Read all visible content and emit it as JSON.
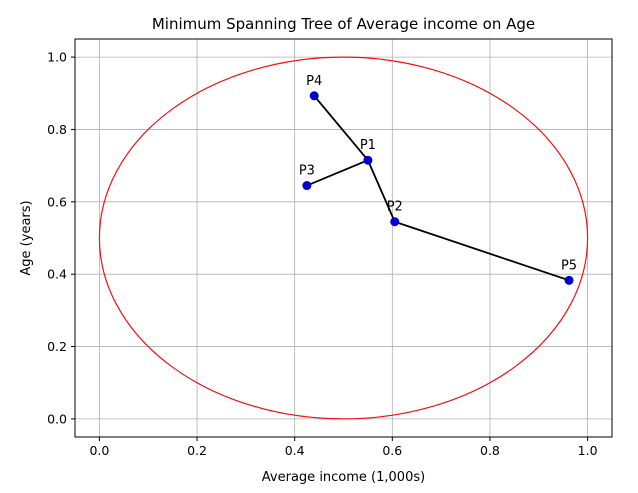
{
  "chart_data": {
    "type": "scatter",
    "title": "Minimum Spanning Tree of Average income on Age",
    "xlabel": "Average income (1,000s)",
    "ylabel": "Age (years)",
    "xlim": [
      -0.05,
      1.05
    ],
    "ylim": [
      -0.05,
      1.05
    ],
    "xticks": [
      0.0,
      0.2,
      0.4,
      0.6,
      0.8,
      1.0
    ],
    "yticks": [
      0.0,
      0.2,
      0.4,
      0.6,
      0.8,
      1.0
    ],
    "xtick_labels": [
      "0.0",
      "0.2",
      "0.4",
      "0.6",
      "0.8",
      "1.0"
    ],
    "ytick_labels": [
      "0.0",
      "0.2",
      "0.4",
      "0.6",
      "0.8",
      "1.0"
    ],
    "grid": true,
    "points": [
      {
        "label": "P1",
        "x": 0.55,
        "y": 0.715
      },
      {
        "label": "P2",
        "x": 0.605,
        "y": 0.545
      },
      {
        "label": "P3",
        "x": 0.425,
        "y": 0.645
      },
      {
        "label": "P4",
        "x": 0.44,
        "y": 0.893
      },
      {
        "label": "P5",
        "x": 0.962,
        "y": 0.383
      }
    ],
    "edges": [
      [
        "P4",
        "P1"
      ],
      [
        "P3",
        "P1"
      ],
      [
        "P1",
        "P2"
      ],
      [
        "P2",
        "P5"
      ]
    ],
    "ellipse": {
      "cx": 0.5,
      "cy": 0.5,
      "rx": 0.5,
      "ry": 0.5
    },
    "colors": {
      "points": "#0000cc",
      "edges": "#000000",
      "ellipse": "#ee1111",
      "grid": "#b0b0b0"
    }
  }
}
